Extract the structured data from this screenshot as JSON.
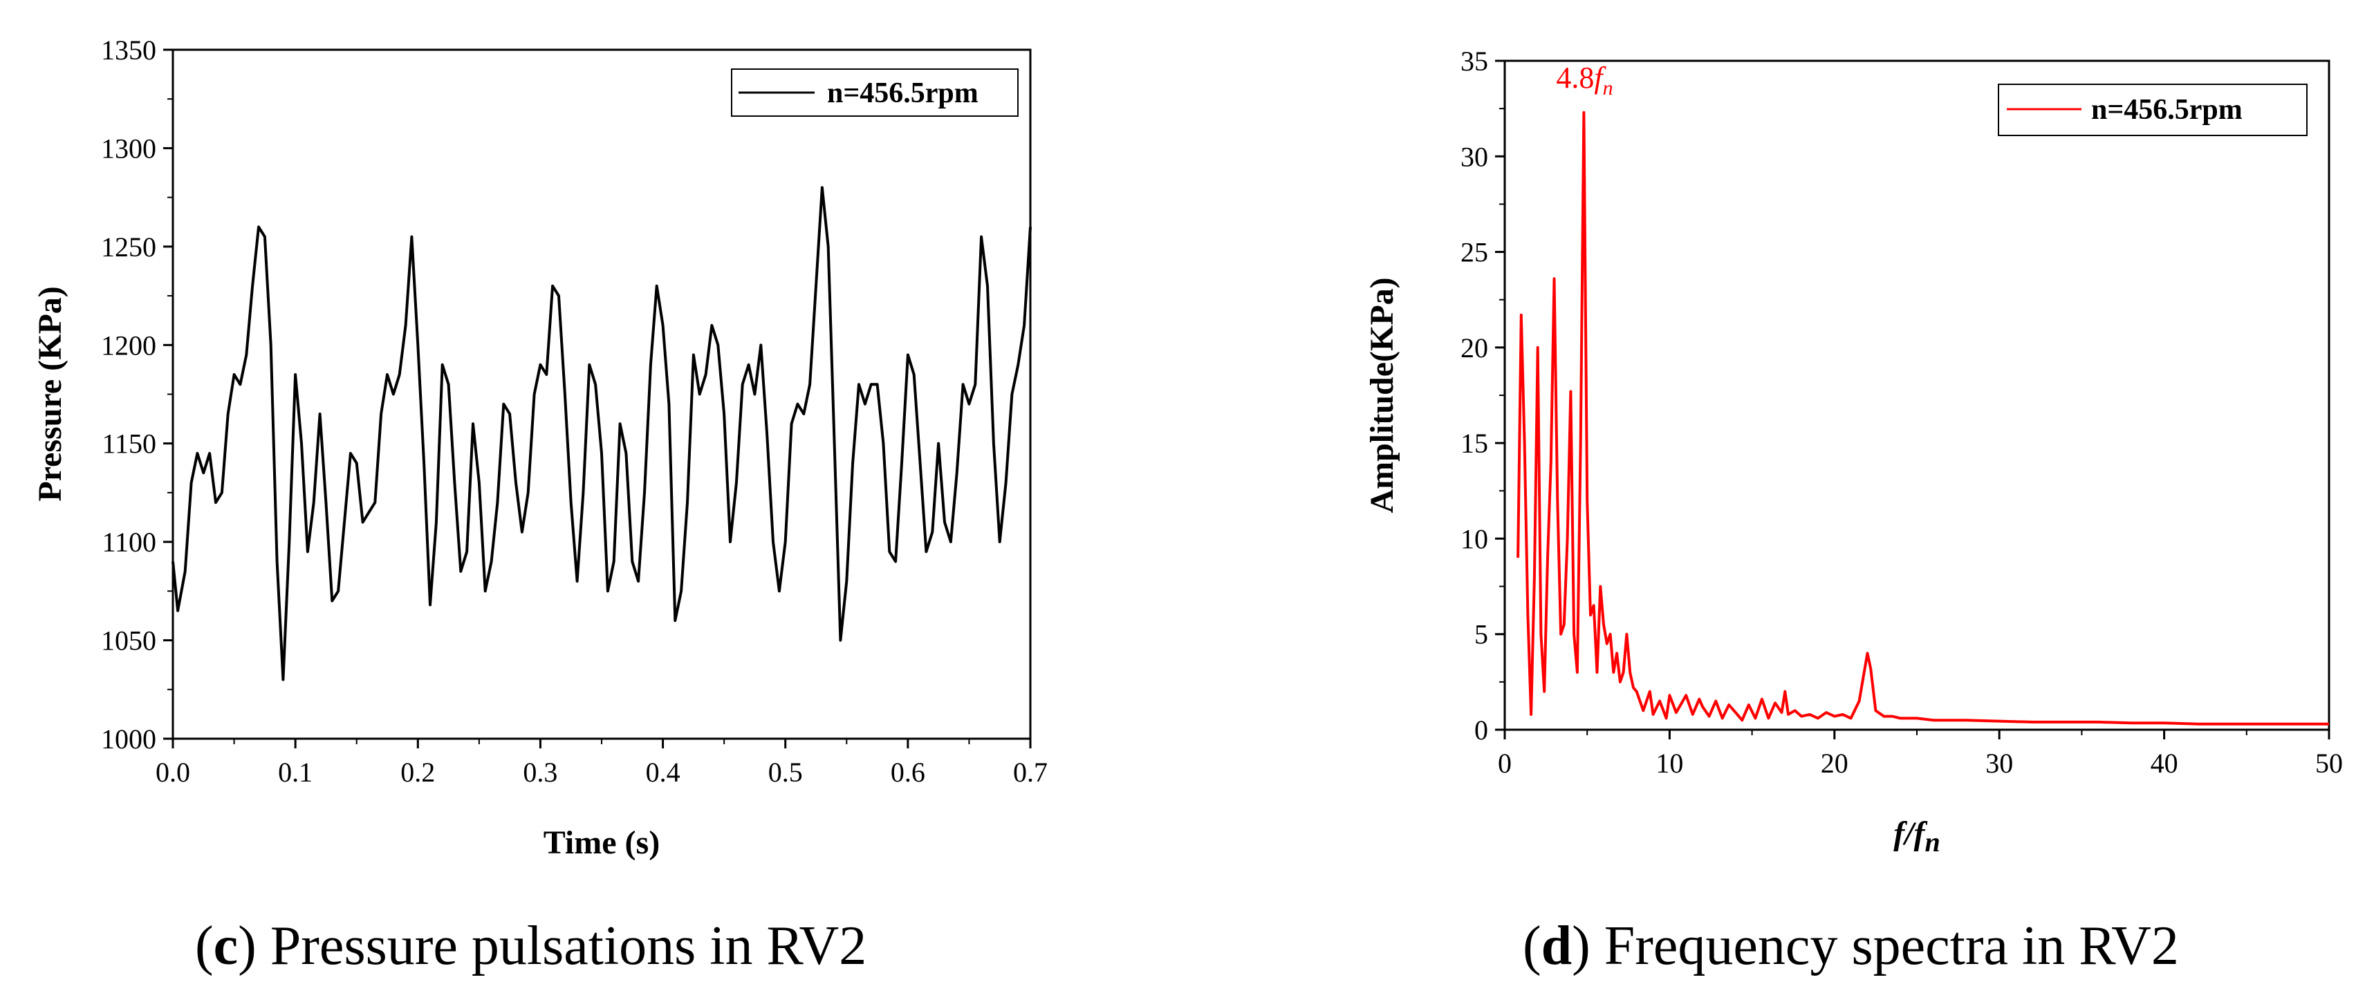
{
  "chart_data": [
    {
      "type": "line",
      "id": "c",
      "caption_letter": "c",
      "caption_text": " Pressure pulsations in RV2",
      "xlabel": "Time (s)",
      "ylabel": "Pressure (KPa)",
      "xlim": [
        0,
        0.7
      ],
      "ylim": [
        1000,
        1350
      ],
      "xticks": [
        0.0,
        0.1,
        0.2,
        0.3,
        0.4,
        0.5,
        0.6,
        0.7
      ],
      "xtick_labels": [
        "0.0",
        "0.1",
        "0.2",
        "0.3",
        "0.4",
        "0.5",
        "0.6",
        "0.7"
      ],
      "yticks": [
        1000,
        1050,
        1100,
        1150,
        1200,
        1250,
        1300,
        1350
      ],
      "ytick_labels": [
        "1000",
        "1050",
        "1100",
        "1150",
        "1200",
        "1250",
        "1300",
        "1350"
      ],
      "color": "#000000",
      "legend_position": "top-right",
      "series": [
        {
          "name": "n=456.5rpm",
          "x": [
            0.0,
            0.004,
            0.01,
            0.015,
            0.02,
            0.025,
            0.03,
            0.035,
            0.04,
            0.045,
            0.05,
            0.055,
            0.06,
            0.065,
            0.07,
            0.075,
            0.08,
            0.085,
            0.09,
            0.095,
            0.1,
            0.105,
            0.11,
            0.115,
            0.12,
            0.125,
            0.13,
            0.135,
            0.14,
            0.145,
            0.15,
            0.155,
            0.16,
            0.165,
            0.17,
            0.175,
            0.18,
            0.185,
            0.19,
            0.195,
            0.2,
            0.205,
            0.21,
            0.215,
            0.22,
            0.225,
            0.23,
            0.235,
            0.24,
            0.245,
            0.25,
            0.255,
            0.26,
            0.265,
            0.27,
            0.275,
            0.28,
            0.285,
            0.29,
            0.295,
            0.3,
            0.305,
            0.31,
            0.315,
            0.32,
            0.325,
            0.33,
            0.335,
            0.34,
            0.345,
            0.35,
            0.355,
            0.36,
            0.365,
            0.37,
            0.375,
            0.38,
            0.385,
            0.39,
            0.395,
            0.4,
            0.405,
            0.41,
            0.415,
            0.42,
            0.425,
            0.43,
            0.435,
            0.44,
            0.445,
            0.45,
            0.455,
            0.46,
            0.465,
            0.47,
            0.475,
            0.48,
            0.485,
            0.49,
            0.495,
            0.5,
            0.505,
            0.51,
            0.515,
            0.52,
            0.525,
            0.53,
            0.535,
            0.54,
            0.545,
            0.55,
            0.555,
            0.56,
            0.565,
            0.57,
            0.575,
            0.58,
            0.585,
            0.59,
            0.595,
            0.6,
            0.605,
            0.61,
            0.615,
            0.62,
            0.625,
            0.63,
            0.635,
            0.64,
            0.645,
            0.65,
            0.655,
            0.66,
            0.665,
            0.67,
            0.675,
            0.68,
            0.685,
            0.69,
            0.695,
            0.7
          ],
          "y": [
            1090,
            1065,
            1085,
            1130,
            1145,
            1135,
            1145,
            1120,
            1125,
            1165,
            1185,
            1180,
            1195,
            1230,
            1260,
            1255,
            1200,
            1090,
            1030,
            1100,
            1185,
            1150,
            1095,
            1120,
            1165,
            1120,
            1070,
            1075,
            1110,
            1145,
            1140,
            1110,
            1115,
            1120,
            1165,
            1185,
            1175,
            1185,
            1210,
            1255,
            1200,
            1140,
            1068,
            1110,
            1190,
            1180,
            1130,
            1085,
            1095,
            1160,
            1130,
            1075,
            1090,
            1120,
            1170,
            1165,
            1130,
            1105,
            1125,
            1175,
            1190,
            1185,
            1230,
            1225,
            1175,
            1120,
            1080,
            1125,
            1190,
            1180,
            1145,
            1075,
            1090,
            1160,
            1145,
            1090,
            1080,
            1125,
            1190,
            1230,
            1210,
            1170,
            1060,
            1075,
            1120,
            1195,
            1175,
            1185,
            1210,
            1200,
            1165,
            1100,
            1130,
            1180,
            1190,
            1175,
            1200,
            1155,
            1100,
            1075,
            1100,
            1160,
            1170,
            1165,
            1180,
            1230,
            1280,
            1250,
            1150,
            1050,
            1080,
            1140,
            1180,
            1170,
            1180,
            1180,
            1150,
            1095,
            1090,
            1140,
            1195,
            1185,
            1140,
            1095,
            1105,
            1150,
            1110,
            1100,
            1135,
            1180,
            1170,
            1180,
            1255,
            1230,
            1150,
            1100,
            1130,
            1175,
            1190,
            1210,
            1260
          ],
          "legend": "n=456.5rpm"
        }
      ]
    },
    {
      "type": "line",
      "id": "d",
      "caption_letter": "d",
      "caption_text": " Frequency spectra in RV2",
      "xlabel_italic_1": "f",
      "xlabel_sep": "/",
      "xlabel_italic_2": "f",
      "xlabel_sub": "n",
      "ylabel": "Amplitude(KPa)",
      "xlim": [
        0,
        50
      ],
      "ylim": [
        0,
        35
      ],
      "xticks": [
        0,
        10,
        20,
        30,
        40,
        50
      ],
      "xtick_labels": [
        "0",
        "10",
        "20",
        "30",
        "40",
        "50"
      ],
      "yticks": [
        0,
        5,
        10,
        15,
        20,
        25,
        30,
        35
      ],
      "ytick_labels": [
        "0",
        "5",
        "10",
        "15",
        "20",
        "25",
        "30",
        "35"
      ],
      "color": "#ff0000",
      "legend_position": "top-right",
      "annotation_value": "4.8",
      "annotation_italic": "f",
      "annotation_sub": "n",
      "annotation_x": 4.8,
      "annotation_y": 32.5,
      "series": [
        {
          "name": "n=456.5rpm",
          "x": [
            0.8,
            1.0,
            1.2,
            1.4,
            1.6,
            1.8,
            2.0,
            2.2,
            2.4,
            2.6,
            2.8,
            3.0,
            3.2,
            3.4,
            3.6,
            3.8,
            4.0,
            4.2,
            4.4,
            4.6,
            4.8,
            5.0,
            5.2,
            5.4,
            5.6,
            5.8,
            6.0,
            6.2,
            6.4,
            6.6,
            6.8,
            7.0,
            7.2,
            7.4,
            7.6,
            7.8,
            8.0,
            8.4,
            8.8,
            9.0,
            9.4,
            9.8,
            10.0,
            10.4,
            10.8,
            11.0,
            11.4,
            11.8,
            12.0,
            12.4,
            12.8,
            13.2,
            13.6,
            14.0,
            14.4,
            14.8,
            15.2,
            15.6,
            16.0,
            16.4,
            16.8,
            17.0,
            17.2,
            17.6,
            18.0,
            18.5,
            19.0,
            19.5,
            20.0,
            20.5,
            21.0,
            21.5,
            21.8,
            22.0,
            22.2,
            22.5,
            23.0,
            23.5,
            24.0,
            25.0,
            26.0,
            28.0,
            30.0,
            32.0,
            34.0,
            36.0,
            38.0,
            40.0,
            42.0,
            44.0,
            46.0,
            48.0,
            50.0
          ],
          "y": [
            9.0,
            21.7,
            15.0,
            6.0,
            0.8,
            8.0,
            20.0,
            5.0,
            2.0,
            9.0,
            14.0,
            23.6,
            12.0,
            5.0,
            5.5,
            10.0,
            17.7,
            5.0,
            3.0,
            15.0,
            32.3,
            12.0,
            6.0,
            6.5,
            3.0,
            7.5,
            5.5,
            4.5,
            5.0,
            3.0,
            4.0,
            2.5,
            3.0,
            5.0,
            3.0,
            2.2,
            2.0,
            1.0,
            2.0,
            0.8,
            1.5,
            0.6,
            1.8,
            0.9,
            1.5,
            1.8,
            0.8,
            1.6,
            1.2,
            0.7,
            1.5,
            0.6,
            1.3,
            0.9,
            0.5,
            1.3,
            0.6,
            1.6,
            0.6,
            1.4,
            0.9,
            2.0,
            0.8,
            1.0,
            0.7,
            0.8,
            0.6,
            0.9,
            0.7,
            0.8,
            0.6,
            1.5,
            3.0,
            4.0,
            3.2,
            1.0,
            0.7,
            0.7,
            0.6,
            0.6,
            0.5,
            0.5,
            0.45,
            0.4,
            0.4,
            0.4,
            0.35,
            0.35,
            0.3,
            0.3,
            0.3,
            0.3,
            0.3
          ],
          "legend": "n=456.5rpm"
        }
      ]
    }
  ]
}
